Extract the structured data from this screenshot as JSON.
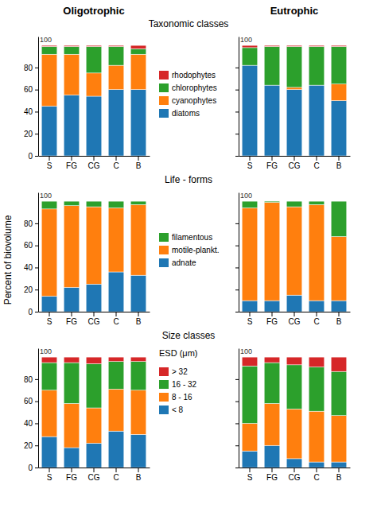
{
  "chart_data": [
    {
      "type": "bar",
      "stacked": true,
      "title": "Oligotrophic",
      "subtitle": "Taxonomic classes",
      "categories": [
        "S",
        "FG",
        "CG",
        "C",
        "B"
      ],
      "series": [
        {
          "name": "diatoms",
          "values": [
            45,
            55,
            54,
            60,
            60
          ]
        },
        {
          "name": "cyanophytes",
          "values": [
            47,
            37,
            21,
            22,
            32
          ]
        },
        {
          "name": "chlorophytes",
          "values": [
            7,
            7,
            24,
            17,
            5
          ]
        },
        {
          "name": "rhodophytes",
          "values": [
            1,
            1,
            1,
            1,
            3
          ]
        }
      ],
      "ylim": [
        0,
        108
      ],
      "yticks": [
        0,
        20,
        40,
        60,
        80
      ],
      "grid": false,
      "legend": "right",
      "annotations": [
        {
          "text": "100",
          "y": 103
        }
      ]
    },
    {
      "type": "bar",
      "stacked": true,
      "title": "Eutrophic",
      "categories": [
        "S",
        "FG",
        "CG",
        "C",
        "B"
      ],
      "series": [
        {
          "values": [
            82,
            64,
            60,
            64,
            50
          ]
        },
        {
          "values": [
            0,
            0,
            2,
            0,
            15
          ]
        },
        {
          "values": [
            16,
            35,
            37,
            35,
            34
          ]
        },
        {
          "values": [
            2,
            1,
            1,
            1,
            1
          ]
        }
      ],
      "ylim": [
        0,
        108
      ],
      "yticks": [
        0,
        20,
        40,
        60,
        80
      ],
      "grid": false,
      "tick_labels": "x",
      "annotations": [
        {
          "text": "100",
          "y": 103
        }
      ]
    },
    {
      "type": "bar",
      "stacked": true,
      "subtitle": "Life - forms",
      "ylabel": "Percent of biovolume",
      "categories": [
        "S",
        "FG",
        "CG",
        "C",
        "B"
      ],
      "series": [
        {
          "name": "adnate",
          "values": [
            14,
            22,
            25,
            36,
            33
          ]
        },
        {
          "name": "motile-plankt.",
          "values": [
            79,
            74,
            70,
            58,
            64
          ]
        },
        {
          "name": "filamentous",
          "values": [
            7,
            4,
            5,
            6,
            3
          ]
        }
      ],
      "ylim": [
        0,
        108
      ],
      "yticks": [
        0,
        20,
        40,
        60,
        80
      ],
      "grid": false,
      "legend": "right",
      "annotations": [
        {
          "text": "100",
          "y": 103
        }
      ]
    },
    {
      "type": "bar",
      "stacked": true,
      "categories": [
        "S",
        "FG",
        "CG",
        "C",
        "B"
      ],
      "series": [
        {
          "values": [
            10,
            10,
            15,
            10,
            10
          ]
        },
        {
          "values": [
            84,
            89,
            80,
            87,
            58
          ]
        },
        {
          "values": [
            6,
            1,
            5,
            3,
            32
          ]
        }
      ],
      "ylim": [
        0,
        108
      ],
      "yticks": [
        0,
        20,
        40,
        60,
        80
      ],
      "grid": false,
      "tick_labels": "x",
      "annotations": [
        {
          "text": "100",
          "y": 103
        }
      ]
    },
    {
      "type": "bar",
      "stacked": true,
      "subtitle": "Size classes",
      "categories": [
        "S",
        "FG",
        "CG",
        "C",
        "B"
      ],
      "series": [
        {
          "name": "< 8",
          "values": [
            28,
            18,
            22,
            33,
            30
          ]
        },
        {
          "name": "8 - 16",
          "values": [
            42,
            40,
            32,
            38,
            40
          ]
        },
        {
          "name": "16 - 32",
          "values": [
            25,
            37,
            40,
            25,
            26
          ]
        },
        {
          "name": "> 32",
          "values": [
            5,
            5,
            6,
            4,
            4
          ]
        }
      ],
      "ylim": [
        0,
        108
      ],
      "yticks": [
        0,
        20,
        40,
        60,
        80
      ],
      "grid": false,
      "legend": "right",
      "annotations": [
        {
          "text": "100",
          "y": 103
        },
        {
          "text": "ESD (μm)"
        }
      ]
    },
    {
      "type": "bar",
      "stacked": true,
      "categories": [
        "S",
        "FG",
        "CG",
        "C",
        "B"
      ],
      "series": [
        {
          "values": [
            15,
            20,
            8,
            5,
            5
          ]
        },
        {
          "values": [
            25,
            38,
            45,
            46,
            42
          ]
        },
        {
          "values": [
            52,
            37,
            40,
            40,
            40
          ]
        },
        {
          "values": [
            8,
            5,
            7,
            9,
            13
          ]
        }
      ],
      "ylim": [
        0,
        108
      ],
      "yticks": [
        0,
        20,
        40,
        60,
        80
      ],
      "grid": false,
      "tick_labels": "x",
      "annotations": [
        {
          "text": "100",
          "y": 103
        }
      ]
    }
  ]
}
